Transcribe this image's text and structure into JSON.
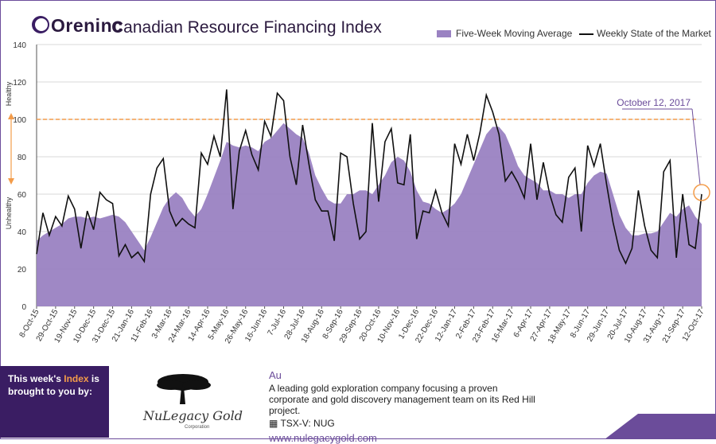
{
  "header": {
    "brand": "Oreninc",
    "title": "Canadian Resource Financing Index",
    "legend_avg": "Five-Week Moving Average",
    "legend_weekly": "Weekly State of the Market"
  },
  "colors": {
    "area": "#9a82c2",
    "line": "#111111",
    "threshold": "#f39c4a",
    "callout": "#6b4c9a"
  },
  "chart_data": {
    "type": "area",
    "ylim": [
      0,
      140
    ],
    "yticks": [
      0,
      20,
      40,
      60,
      80,
      100,
      120,
      140
    ],
    "y_annotations": {
      "top": "Healthy",
      "bottom": "Unhealthy"
    },
    "threshold": 100,
    "callout": "October 12, 2017",
    "xtick_labels": [
      "8-Oct-15",
      "29-Oct-15",
      "19-Nov-15",
      "10-Dec-15",
      "31-Dec-15",
      "21-Jan-16",
      "11-Feb-16",
      "3-Mar-16",
      "24-Mar-16",
      "14-Apr-16",
      "5-May-16",
      "26-May-16",
      "16-Jun-16",
      "7-Jul-16",
      "28-Jul-16",
      "18-Aug-16",
      "8-Sep-16",
      "29-Sep-16",
      "20-Oct-16",
      "10-Nov-16",
      "1-Dec-16",
      "22-Dec-16",
      "12-Jan-17",
      "2-Feb-17",
      "23-Feb-17",
      "16-Mar-17",
      "6-Apr-17",
      "27-Apr-17",
      "18-May-17",
      "8-Jun-17",
      "29-Jun-17",
      "20-Jul-17",
      "10-Aug-17",
      "31-Aug-17",
      "21-Sep-17",
      "12-Oct-17"
    ],
    "series": [
      {
        "name": "Weekly State of the Market",
        "values": [
          28,
          50,
          38,
          48,
          43,
          59,
          52,
          31,
          51,
          41,
          61,
          57,
          55,
          27,
          33,
          26,
          29,
          24,
          60,
          74,
          79,
          51,
          43,
          47,
          44,
          42,
          82,
          76,
          91,
          80,
          116,
          52,
          83,
          94,
          81,
          73,
          99,
          91,
          114,
          110,
          80,
          65,
          97,
          76,
          57,
          51,
          51,
          35,
          82,
          80,
          55,
          36,
          40,
          98,
          56,
          88,
          95,
          66,
          65,
          92,
          36,
          51,
          50,
          62,
          50,
          43,
          87,
          76,
          92,
          78,
          93,
          113,
          104,
          92,
          67,
          72,
          66,
          58,
          87,
          57,
          77,
          60,
          49,
          45,
          69,
          74,
          40,
          86,
          75,
          87,
          65,
          45,
          30,
          23,
          31,
          62,
          43,
          30,
          26,
          72,
          78,
          26,
          60,
          33,
          31,
          60
        ],
        "_note_none": ""
      },
      {
        "name": "Five-Week Moving Average",
        "values": [
          35,
          38,
          40,
          42,
          44,
          47,
          48,
          48,
          47,
          48,
          47,
          48,
          49,
          48,
          45,
          40,
          35,
          30,
          37,
          45,
          53,
          58,
          61,
          58,
          52,
          48,
          52,
          60,
          69,
          78,
          88,
          86,
          85,
          86,
          85,
          83,
          88,
          90,
          94,
          98,
          95,
          92,
          90,
          82,
          70,
          63,
          57,
          55,
          55,
          60,
          60,
          62,
          62,
          60,
          65,
          70,
          77,
          80,
          78,
          72,
          62,
          56,
          55,
          52,
          50,
          52,
          55,
          60,
          68,
          76,
          84,
          92,
          96,
          96,
          92,
          84,
          75,
          70,
          68,
          66,
          62,
          62,
          60,
          60,
          58,
          60,
          60,
          66,
          70,
          72,
          71,
          60,
          49,
          42,
          38,
          38,
          39,
          39,
          40,
          45,
          50,
          48,
          52,
          54,
          48,
          44
        ]
      }
    ]
  },
  "footer": {
    "sponsor_prefix": "This week's",
    "sponsor_highlight": "Index",
    "sponsor_suffix": "is brought to you by:",
    "company_name": "NuLegacy Gold",
    "company_corp": "Corporation",
    "symbol": "Au",
    "description": "A leading gold exploration company focusing a proven corporate and gold discovery management team on its Red Hill project.",
    "ticker": "TSX-V:  NUG",
    "url": "www.nulegacygold.com"
  }
}
